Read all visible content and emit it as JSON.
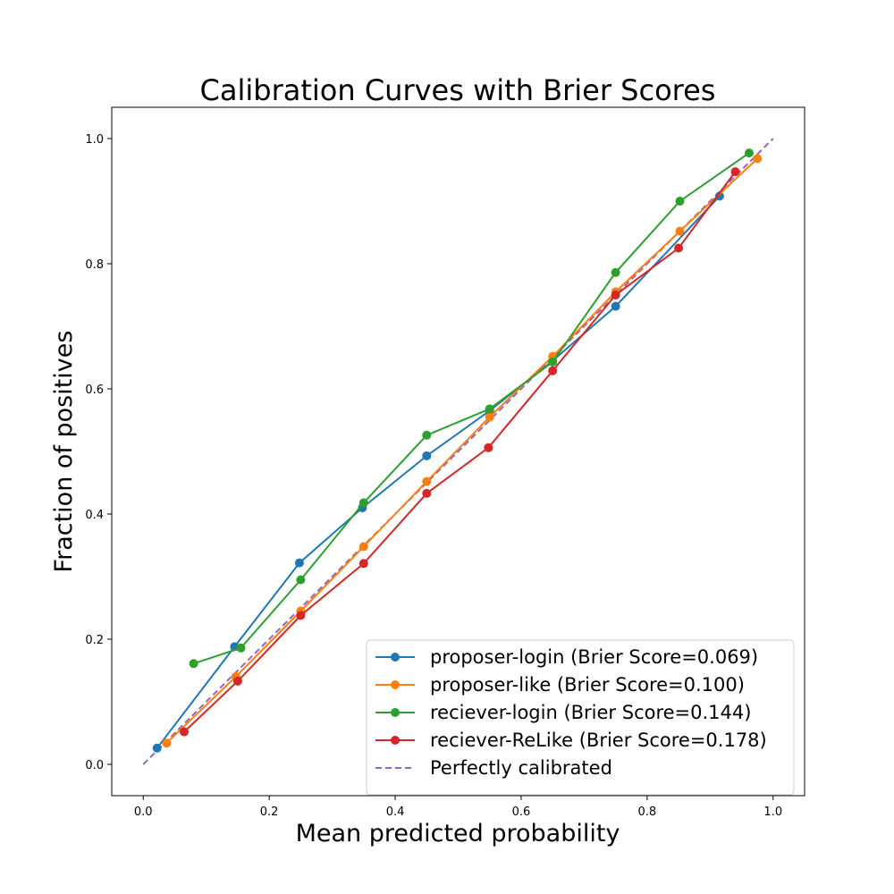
{
  "chart_data": {
    "type": "line",
    "title": "Calibration Curves with Brier Scores",
    "xlabel": "Mean predicted probability",
    "ylabel": "Fraction of positives",
    "xlim": [
      -0.05,
      1.05
    ],
    "ylim": [
      -0.05,
      1.05
    ],
    "xticks": [
      "0.0",
      "0.2",
      "0.4",
      "0.6",
      "0.8",
      "1.0"
    ],
    "yticks": [
      "0.0",
      "0.2",
      "0.4",
      "0.6",
      "0.8",
      "1.0"
    ],
    "grid": false,
    "legend_position": "lower-right",
    "series": [
      {
        "name": "proposer-login (Brier Score=0.069)",
        "color": "#1f77b4",
        "x": [
          0.022,
          0.145,
          0.248,
          0.348,
          0.45,
          0.55,
          0.65,
          0.75,
          0.915
        ],
        "y": [
          0.026,
          0.188,
          0.322,
          0.41,
          0.493,
          0.565,
          0.645,
          0.732,
          0.908
        ]
      },
      {
        "name": "proposer-like (Brier Score=0.100)",
        "color": "#ff7f0e",
        "x": [
          0.037,
          0.147,
          0.25,
          0.35,
          0.45,
          0.55,
          0.65,
          0.75,
          0.852,
          0.975
        ],
        "y": [
          0.034,
          0.14,
          0.245,
          0.348,
          0.452,
          0.555,
          0.652,
          0.755,
          0.852,
          0.968
        ]
      },
      {
        "name": "reciever-login (Brier Score=0.144)",
        "color": "#2ca02c",
        "x": [
          0.08,
          0.155,
          0.25,
          0.35,
          0.45,
          0.55,
          0.65,
          0.75,
          0.852,
          0.962
        ],
        "y": [
          0.161,
          0.186,
          0.295,
          0.418,
          0.526,
          0.568,
          0.643,
          0.786,
          0.9,
          0.977
        ]
      },
      {
        "name": "reciever-ReLike (Brier Score=0.178)",
        "color": "#d62728",
        "x": [
          0.065,
          0.15,
          0.25,
          0.35,
          0.45,
          0.548,
          0.65,
          0.75,
          0.85,
          0.94
        ],
        "y": [
          0.052,
          0.133,
          0.238,
          0.321,
          0.433,
          0.506,
          0.629,
          0.75,
          0.825,
          0.947
        ]
      }
    ],
    "reference_line": {
      "name": "Perfectly calibrated",
      "color": "#9467bd",
      "x": [
        0,
        1
      ],
      "y": [
        0,
        1
      ]
    }
  }
}
